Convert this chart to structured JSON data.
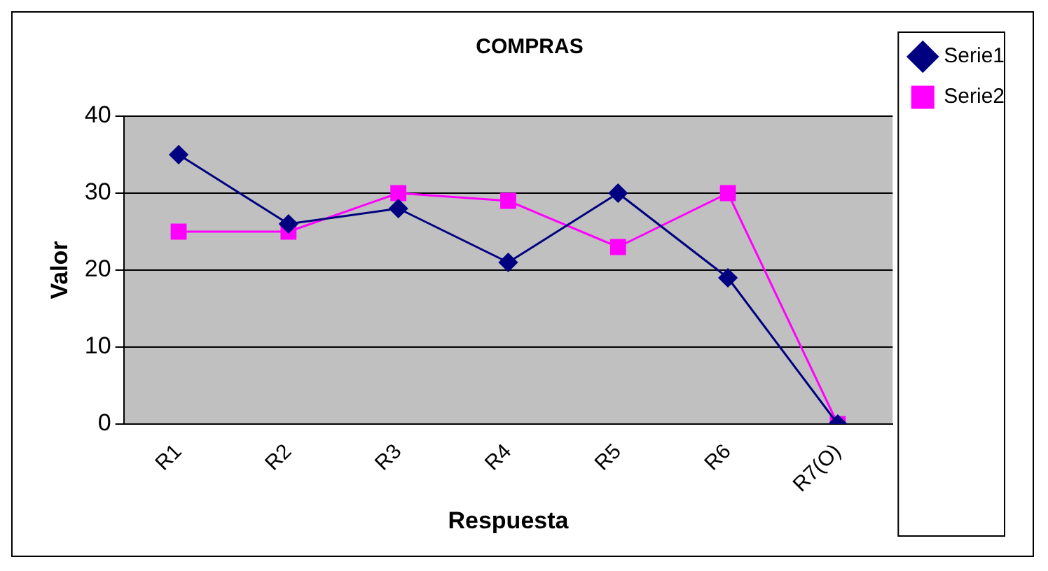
{
  "chart_data": {
    "type": "line",
    "title": "COMPRAS",
    "xlabel": "Respuesta",
    "ylabel": "Valor",
    "categories": [
      "R1",
      "R2",
      "R3",
      "R4",
      "R5",
      "R6",
      "R7(O)"
    ],
    "series": [
      {
        "name": "Serie1",
        "color": "#000080",
        "marker": "diamond",
        "values": [
          35,
          26,
          28,
          21,
          30,
          19,
          0
        ]
      },
      {
        "name": "Serie2",
        "color": "#ff00ff",
        "marker": "square",
        "values": [
          25,
          25,
          30,
          29,
          23,
          30,
          0
        ]
      }
    ],
    "ylim": [
      0,
      40
    ],
    "yticks": [
      0,
      10,
      20,
      30,
      40
    ],
    "grid": "y",
    "legend": "right"
  }
}
